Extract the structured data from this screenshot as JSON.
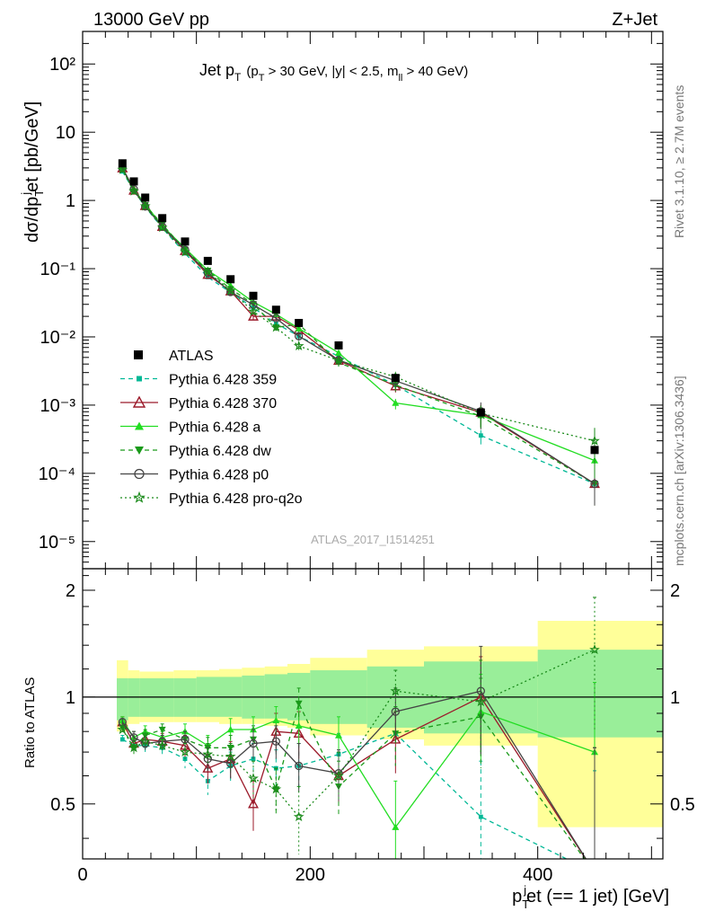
{
  "header": {
    "left": "13000 GeV pp",
    "right": "Z+Jet"
  },
  "side_labels": {
    "rivet": "Rivet 3.1.10, ≥ 2.7M events",
    "mcplots": "mcplots.cern.ch [arXiv:1306.3436]"
  },
  "watermark": "ATLAS_2017_I1514251",
  "chart_data": {
    "type": "scatter",
    "title": {
      "main": "Jet p",
      "main_sub": "T",
      "cut_pre": "(p",
      "cut_sub": "T",
      "cut_mid": " > 30 GeV, |y| < 2.5, m",
      "cut_sub2": "ll",
      "cut_post": " > 40 GeV)"
    },
    "ylabel_main": {
      "pre": "dσ/dp",
      "sub": "T",
      "sup": "j",
      "post": "et [pb/GeV]"
    },
    "ylabel_ratio": "Ratio to ATLAS",
    "xlabel": {
      "pre": "p",
      "sub": "T",
      "sup": "j",
      "post": "et (== 1 jet) [GeV]"
    },
    "x_ticks": [
      "0",
      "200",
      "400"
    ],
    "y_ticks_main": [
      "10⁻⁵",
      "10⁻⁴",
      "10⁻³",
      "10⁻²",
      "10⁻¹",
      "1",
      "10",
      "10²"
    ],
    "y_ticks_ratio": [
      "0.5",
      "1",
      "2"
    ],
    "xlim": [
      0,
      510
    ],
    "ylim_main": [
      4e-06,
      300
    ],
    "ylim_ratio": [
      0.35,
      2.3
    ],
    "y_scale": "log",
    "bin_edges": [
      30,
      40,
      50,
      60,
      80,
      100,
      120,
      140,
      160,
      180,
      200,
      250,
      300,
      400,
      510
    ],
    "data": {
      "name": "ATLAS",
      "x": [
        35,
        45,
        55,
        70,
        90,
        110,
        130,
        150,
        170,
        190,
        225,
        275,
        350,
        450
      ],
      "y": [
        3.5,
        1.9,
        1.1,
        0.55,
        0.25,
        0.13,
        0.07,
        0.04,
        0.025,
        0.016,
        0.0075,
        0.0025,
        0.00078,
        0.00022
      ],
      "band_inner": [
        [
          0.86,
          1.13
        ],
        [
          0.88,
          1.13
        ],
        [
          0.88,
          1.13
        ],
        [
          0.88,
          1.13
        ],
        [
          0.88,
          1.13
        ],
        [
          0.88,
          1.14
        ],
        [
          0.88,
          1.14
        ],
        [
          0.87,
          1.15
        ],
        [
          0.87,
          1.16
        ],
        [
          0.86,
          1.17
        ],
        [
          0.84,
          1.19
        ],
        [
          0.82,
          1.22
        ],
        [
          0.79,
          1.26
        ],
        [
          0.77,
          1.36
        ]
      ],
      "band_outer": [
        [
          0.8,
          1.27
        ],
        [
          0.84,
          1.19
        ],
        [
          0.85,
          1.18
        ],
        [
          0.85,
          1.18
        ],
        [
          0.85,
          1.19
        ],
        [
          0.85,
          1.19
        ],
        [
          0.84,
          1.2
        ],
        [
          0.84,
          1.21
        ],
        [
          0.83,
          1.22
        ],
        [
          0.82,
          1.24
        ],
        [
          0.78,
          1.29
        ],
        [
          0.76,
          1.36
        ],
        [
          0.73,
          1.39
        ],
        [
          0.43,
          1.64
        ]
      ]
    },
    "series": [
      {
        "name": "Pythia 6.428 359",
        "color": "#00b896",
        "dash": "5,4",
        "marker": "square",
        "ratio": [
          0.76,
          0.73,
          0.73,
          0.72,
          0.67,
          0.58,
          0.64,
          0.67,
          0.63,
          0.64,
          0.69,
          0.79,
          0.46,
          0.32
        ],
        "err": [
          0.02,
          0.03,
          0.03,
          0.03,
          0.04,
          0.05,
          0.06,
          0.07,
          0.08,
          0.1,
          0.1,
          0.15,
          0.2,
          0.3
        ]
      },
      {
        "name": "Pythia 6.428 370",
        "color": "#9b1a2a",
        "dash": "",
        "marker": "triangle-open",
        "ratio": [
          0.85,
          0.74,
          0.76,
          0.75,
          0.73,
          0.63,
          0.67,
          0.5,
          0.8,
          0.79,
          0.6,
          0.76,
          1.0,
          0.32
        ],
        "err": [
          0.03,
          0.03,
          0.03,
          0.04,
          0.05,
          0.06,
          0.08,
          0.08,
          0.1,
          0.12,
          0.1,
          0.15,
          0.3,
          0.4
        ]
      },
      {
        "name": "Pythia 6.428 a",
        "color": "#22dd22",
        "dash": "",
        "marker": "triangle",
        "ratio": [
          0.86,
          0.77,
          0.8,
          0.77,
          0.8,
          0.73,
          0.81,
          0.81,
          0.86,
          0.83,
          0.78,
          0.43,
          0.91,
          0.7
        ],
        "err": [
          0.02,
          0.03,
          0.03,
          0.03,
          0.04,
          0.05,
          0.06,
          0.07,
          0.08,
          0.1,
          0.1,
          0.15,
          0.25,
          0.4
        ]
      },
      {
        "name": "Pythia 6.428 dw",
        "color": "#1a9a1a",
        "dash": "5,4",
        "marker": "triangle-down",
        "ratio": [
          0.82,
          0.72,
          0.78,
          0.81,
          0.76,
          0.72,
          0.72,
          0.76,
          0.55,
          0.96,
          0.56,
          0.79,
          0.88,
          0.32
        ],
        "err": [
          0.02,
          0.03,
          0.03,
          0.03,
          0.04,
          0.05,
          0.06,
          0.07,
          0.08,
          0.1,
          0.1,
          0.15,
          0.25,
          0.4
        ]
      },
      {
        "name": "Pythia 6.428 p0",
        "color": "#444444",
        "dash": "",
        "marker": "circle-open",
        "ratio": [
          0.85,
          0.77,
          0.74,
          0.75,
          0.76,
          0.67,
          0.65,
          0.74,
          0.75,
          0.64,
          0.61,
          0.91,
          1.04,
          0.32
        ],
        "err": [
          0.02,
          0.03,
          0.03,
          0.03,
          0.04,
          0.05,
          0.06,
          0.07,
          0.08,
          0.1,
          0.1,
          0.15,
          0.35,
          0.4
        ]
      },
      {
        "name": "Pythia 6.428 pro-q2o",
        "color": "#1a8a1a",
        "dash": "2,3",
        "marker": "star",
        "ratio": [
          0.81,
          0.72,
          0.75,
          0.73,
          0.7,
          0.69,
          0.68,
          0.59,
          0.55,
          0.46,
          0.6,
          1.04,
          0.97,
          1.36
        ],
        "err": [
          0.02,
          0.03,
          0.03,
          0.03,
          0.04,
          0.05,
          0.06,
          0.07,
          0.08,
          0.1,
          0.1,
          0.15,
          0.3,
          0.55
        ]
      }
    ]
  }
}
